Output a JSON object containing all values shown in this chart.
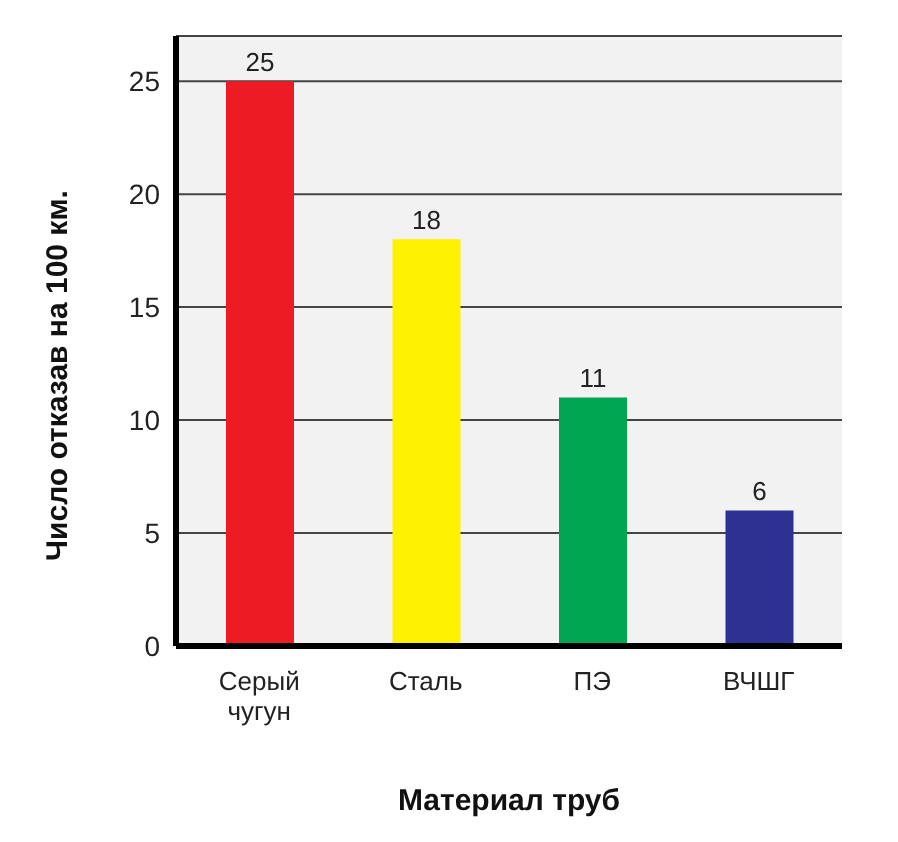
{
  "chart_data": {
    "type": "bar",
    "categories": [
      "Серый чугун",
      "Сталь",
      "ПЭ",
      "ВЧШГ"
    ],
    "values": [
      25,
      18,
      11,
      6
    ],
    "colors": [
      "#ed1c24",
      "#fff200",
      "#00a651",
      "#2e3192"
    ],
    "ylim": [
      0,
      27
    ],
    "yticks": [
      0,
      5,
      10,
      15,
      20,
      25
    ],
    "grid": "y",
    "data_labels": true,
    "xlabel": "Материал труб",
    "ylabel": "Число отказав на 100 км."
  }
}
